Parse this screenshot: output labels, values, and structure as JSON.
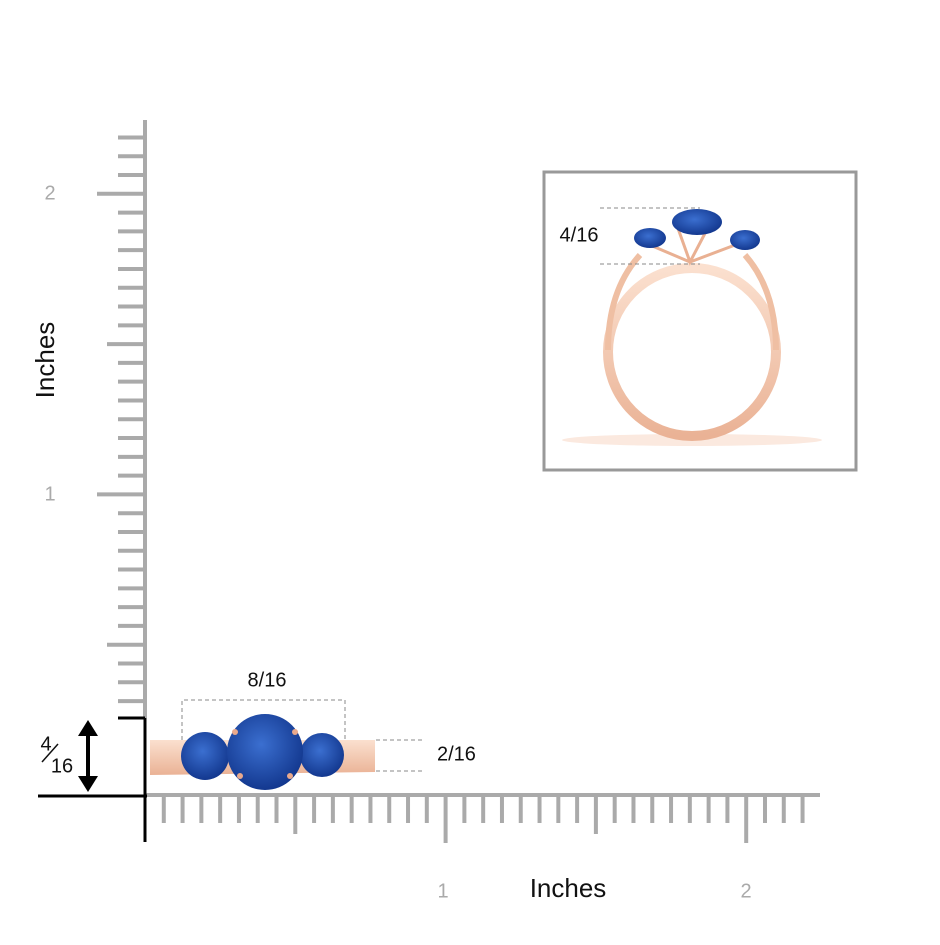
{
  "vertical_ruler": {
    "axis_label": "Inches",
    "tick_labels": [
      "1",
      "2"
    ]
  },
  "horizontal_ruler": {
    "axis_label": "Inches",
    "tick_labels": [
      "1",
      "2"
    ]
  },
  "side_view": {
    "width_label": "8/16",
    "height_label": "2/16",
    "total_height_numerator": "4",
    "total_height_denominator": "16"
  },
  "inset_view": {
    "height_label": "4/16"
  }
}
